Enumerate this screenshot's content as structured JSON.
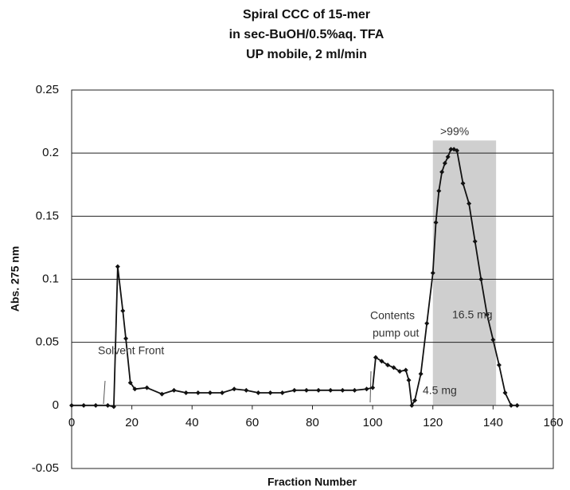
{
  "chart_data": {
    "type": "line",
    "title": [
      "Spiral CCC of 15-mer",
      "in sec-BuOH/0.5%aq. TFA",
      "UP mobile, 2 ml/min"
    ],
    "x_label": "Fraction Number",
    "y_label": "Abs. 275 nm",
    "xlim": [
      0,
      160
    ],
    "xticks": [
      0,
      20,
      40,
      60,
      80,
      100,
      120,
      140,
      160
    ],
    "ylim": [
      -0.05,
      0.25
    ],
    "yticks": [
      -0.05,
      0,
      0.05,
      0.1,
      0.15,
      0.2,
      0.25
    ],
    "grid": true,
    "series": [
      {
        "name": "Abs. 275 nm",
        "color": "#111111",
        "x": [
          0,
          4,
          8,
          12,
          14,
          15.3,
          17,
          18,
          19.5,
          21,
          25,
          30,
          34,
          38,
          42,
          46,
          50,
          54,
          58,
          62,
          66,
          70,
          74,
          78,
          82,
          86,
          90,
          94,
          98,
          100,
          101,
          103,
          105,
          107,
          109,
          111,
          112,
          113,
          114,
          116,
          118,
          120,
          121,
          122,
          123,
          124,
          125,
          126,
          127,
          128,
          130,
          132,
          134,
          136,
          138,
          140,
          142,
          144,
          146,
          148
        ],
        "values": [
          0,
          0,
          0,
          0,
          -0.001,
          0.11,
          0.075,
          0.053,
          0.018,
          0.013,
          0.014,
          0.009,
          0.012,
          0.01,
          0.01,
          0.01,
          0.01,
          0.013,
          0.012,
          0.01,
          0.01,
          0.01,
          0.012,
          0.012,
          0.012,
          0.012,
          0.012,
          0.012,
          0.013,
          0.014,
          0.038,
          0.035,
          0.032,
          0.03,
          0.027,
          0.028,
          0.02,
          0,
          0.004,
          0.025,
          0.065,
          0.105,
          0.145,
          0.17,
          0.185,
          0.192,
          0.197,
          0.203,
          0.203,
          0.202,
          0.176,
          0.16,
          0.13,
          0.1,
          0.072,
          0.052,
          0.032,
          0.01,
          0,
          0
        ]
      }
    ],
    "highlight_region": {
      "x": [
        120,
        141
      ],
      "y": [
        0,
        0.21
      ],
      "color": "#cfcfcf"
    },
    "annotations": [
      "Solvent Front",
      "Contents",
      "pump out",
      ">99%",
      "16.5 mg",
      "4.5 mg"
    ]
  }
}
